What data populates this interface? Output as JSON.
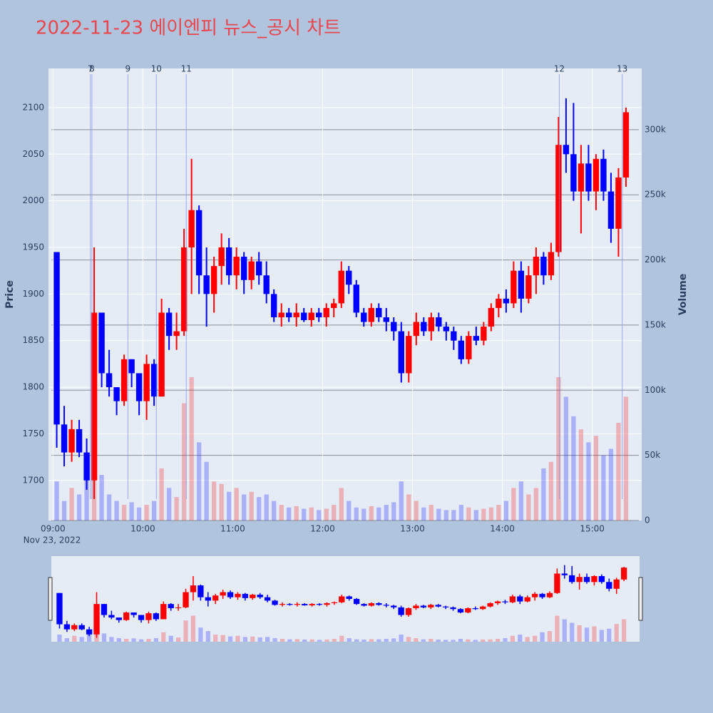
{
  "chart_data": {
    "type": "candlestick",
    "title": "2022-11-23 에이엔피 뉴스_공시 차트",
    "y_label": "Price",
    "y2_label": "Volume",
    "x_date_label": "Nov 23, 2022",
    "increasing_color": "#ff0000",
    "decreasing_color": "#0000ff",
    "xlim": [
      "08:57",
      "15:33"
    ],
    "xticks": [
      "09:00",
      "10:00",
      "11:00",
      "12:00",
      "13:00",
      "14:00",
      "15:00"
    ],
    "ylim": [
      1657,
      2142
    ],
    "yticks": [
      1700,
      1750,
      1800,
      1850,
      1900,
      1950,
      2000,
      2050,
      2100
    ],
    "y2lim": [
      0,
      347000
    ],
    "y2ticks": [
      {
        "value": 0,
        "label": "0"
      },
      {
        "value": 50000,
        "label": "50k"
      },
      {
        "value": 100000,
        "label": "100k"
      },
      {
        "value": 150000,
        "label": "150k"
      },
      {
        "value": 200000,
        "label": "200k"
      },
      {
        "value": 250000,
        "label": "250k"
      },
      {
        "value": 300000,
        "label": "300k"
      }
    ],
    "grid": true,
    "annotations": [
      {
        "x": "09:25",
        "label": "7"
      },
      {
        "x": "09:26",
        "label": "8"
      },
      {
        "x": "09:50",
        "label": "9"
      },
      {
        "x": "10:09",
        "label": "10"
      },
      {
        "x": "10:29",
        "label": "11"
      },
      {
        "x": "14:38",
        "label": "12"
      },
      {
        "x": "15:20",
        "label": "13"
      }
    ],
    "x": [
      "09:00",
      "09:05",
      "09:10",
      "09:15",
      "09:20",
      "09:25",
      "09:30",
      "09:35",
      "09:40",
      "09:45",
      "09:50",
      "09:55",
      "10:00",
      "10:05",
      "10:10",
      "10:15",
      "10:20",
      "10:25",
      "10:30",
      "10:35",
      "10:40",
      "10:45",
      "10:50",
      "10:55",
      "11:00",
      "11:05",
      "11:10",
      "11:15",
      "11:20",
      "11:25",
      "11:30",
      "11:35",
      "11:40",
      "11:45",
      "11:50",
      "11:55",
      "12:00",
      "12:05",
      "12:10",
      "12:15",
      "12:20",
      "12:25",
      "12:30",
      "12:35",
      "12:40",
      "12:45",
      "12:50",
      "12:55",
      "13:00",
      "13:05",
      "13:10",
      "13:15",
      "13:20",
      "13:25",
      "13:30",
      "13:35",
      "13:40",
      "13:45",
      "13:50",
      "13:55",
      "14:00",
      "14:05",
      "14:10",
      "14:15",
      "14:20",
      "14:25",
      "14:30",
      "14:35",
      "14:40",
      "14:45",
      "14:50",
      "14:55",
      "15:00",
      "15:05",
      "15:10",
      "15:15",
      "15:20"
    ],
    "open": [
      1945,
      1760,
      1730,
      1755,
      1730,
      1700,
      1880,
      1815,
      1800,
      1785,
      1830,
      1815,
      1785,
      1825,
      1790,
      1880,
      1855,
      1860,
      1950,
      1990,
      1920,
      1900,
      1930,
      1950,
      1920,
      1940,
      1915,
      1935,
      1920,
      1900,
      1875,
      1880,
      1875,
      1880,
      1872,
      1880,
      1875,
      1885,
      1890,
      1925,
      1910,
      1880,
      1870,
      1885,
      1875,
      1870,
      1860,
      1815,
      1855,
      1870,
      1860,
      1875,
      1865,
      1860,
      1850,
      1830,
      1855,
      1850,
      1865,
      1885,
      1895,
      1890,
      1925,
      1895,
      1920,
      1940,
      1920,
      1945,
      2060,
      2050,
      2010,
      2040,
      2010,
      2045,
      2010,
      1970,
      2025
    ],
    "high": [
      1945,
      1780,
      1765,
      1765,
      1745,
      1950,
      1880,
      1840,
      1800,
      1835,
      1830,
      1815,
      1835,
      1830,
      1895,
      1885,
      1880,
      1970,
      2045,
      1995,
      1950,
      1940,
      1965,
      1960,
      1950,
      1945,
      1940,
      1945,
      1935,
      1905,
      1890,
      1885,
      1890,
      1885,
      1885,
      1885,
      1890,
      1895,
      1935,
      1930,
      1915,
      1885,
      1890,
      1890,
      1885,
      1875,
      1870,
      1860,
      1880,
      1875,
      1880,
      1880,
      1870,
      1865,
      1855,
      1860,
      1865,
      1870,
      1890,
      1900,
      1905,
      1935,
      1935,
      1930,
      1950,
      1945,
      1955,
      2090,
      2110,
      2105,
      2060,
      2060,
      2050,
      2055,
      2030,
      2035,
      2100
    ],
    "low": [
      1735,
      1715,
      1720,
      1725,
      1690,
      1680,
      1800,
      1790,
      1770,
      1780,
      1800,
      1770,
      1765,
      1780,
      1790,
      1840,
      1840,
      1855,
      1900,
      1900,
      1865,
      1880,
      1910,
      1910,
      1905,
      1900,
      1905,
      1910,
      1890,
      1870,
      1865,
      1870,
      1865,
      1870,
      1865,
      1870,
      1865,
      1875,
      1885,
      1900,
      1875,
      1865,
      1865,
      1870,
      1860,
      1850,
      1805,
      1805,
      1845,
      1855,
      1850,
      1860,
      1850,
      1840,
      1825,
      1825,
      1845,
      1845,
      1860,
      1875,
      1880,
      1885,
      1880,
      1890,
      1900,
      1910,
      1915,
      1940,
      2030,
      2000,
      1965,
      2000,
      1990,
      2000,
      1955,
      1940,
      2015
    ],
    "close": [
      1760,
      1730,
      1755,
      1730,
      1700,
      1880,
      1815,
      1800,
      1785,
      1830,
      1815,
      1785,
      1825,
      1790,
      1880,
      1855,
      1860,
      1950,
      1990,
      1920,
      1900,
      1930,
      1950,
      1920,
      1940,
      1915,
      1935,
      1920,
      1900,
      1875,
      1880,
      1875,
      1880,
      1872,
      1880,
      1875,
      1885,
      1890,
      1925,
      1910,
      1880,
      1870,
      1885,
      1875,
      1870,
      1860,
      1815,
      1855,
      1870,
      1860,
      1875,
      1865,
      1860,
      1850,
      1830,
      1855,
      1850,
      1865,
      1885,
      1895,
      1890,
      1925,
      1895,
      1920,
      1940,
      1920,
      1945,
      2060,
      2050,
      2010,
      2040,
      2010,
      2045,
      2010,
      1970,
      2025,
      2095
    ],
    "volume": [
      30000,
      15000,
      25000,
      20000,
      40000,
      60000,
      35000,
      20000,
      15000,
      12000,
      14000,
      10000,
      12000,
      15000,
      40000,
      25000,
      18000,
      90000,
      110000,
      60000,
      45000,
      30000,
      28000,
      22000,
      25000,
      20000,
      22000,
      18000,
      20000,
      15000,
      12000,
      10000,
      11000,
      9000,
      10000,
      8000,
      9000,
      12000,
      25000,
      15000,
      10000,
      9000,
      11000,
      10000,
      12000,
      14000,
      30000,
      20000,
      15000,
      10000,
      12000,
      9000,
      8000,
      8000,
      12000,
      10000,
      8000,
      9000,
      10000,
      12000,
      15000,
      25000,
      30000,
      20000,
      25000,
      40000,
      45000,
      110000,
      95000,
      80000,
      70000,
      60000,
      65000,
      50000,
      55000,
      75000,
      95000
    ]
  }
}
